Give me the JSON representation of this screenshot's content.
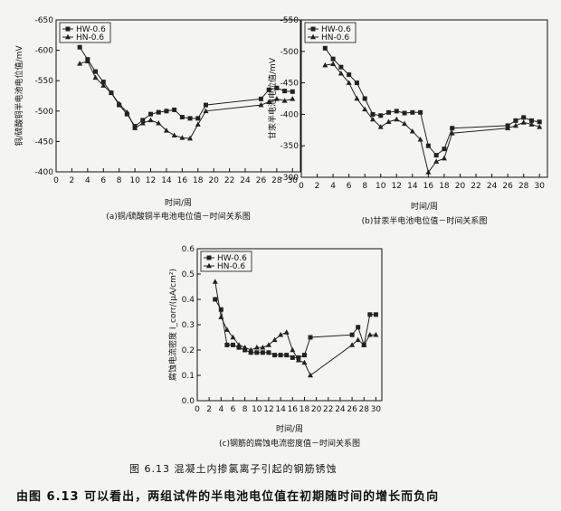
{
  "chart_data": [
    {
      "type": "line",
      "title": "(a)铜/硫酸铜半电池电位值－时间关系图",
      "xlabel": "时间/周",
      "ylabel": "铜/硫酸铜半电池电位值/mV",
      "xlim": [
        0,
        31
      ],
      "ylim": [
        -400,
        -650
      ],
      "xticks": [
        0,
        2,
        4,
        6,
        8,
        10,
        12,
        14,
        16,
        18,
        20,
        22,
        24,
        26,
        28,
        30
      ],
      "yticks": [
        -650,
        -600,
        -550,
        -500,
        -450,
        -400
      ],
      "legend_position": "top-left",
      "series": [
        {
          "name": "HW-0.6",
          "marker": "square",
          "x": [
            3,
            4,
            5,
            6,
            7,
            8,
            9,
            10,
            11,
            12,
            13,
            14,
            15,
            16,
            17,
            18,
            19,
            26,
            27,
            28,
            29,
            30
          ],
          "y": [
            -605,
            -585,
            -565,
            -548,
            -530,
            -510,
            -495,
            -475,
            -485,
            -495,
            -498,
            -500,
            -502,
            -490,
            -488,
            -488,
            -510,
            -520,
            -535,
            -538,
            -533,
            -532
          ]
        },
        {
          "name": "HN-0.6",
          "marker": "triangle",
          "x": [
            3,
            4,
            5,
            6,
            7,
            8,
            9,
            10,
            11,
            12,
            13,
            14,
            15,
            16,
            17,
            18,
            19,
            26,
            27,
            28,
            29,
            30
          ],
          "y": [
            -578,
            -582,
            -555,
            -542,
            -530,
            -512,
            -498,
            -472,
            -480,
            -485,
            -480,
            -468,
            -460,
            -456,
            -455,
            -478,
            -500,
            -510,
            -515,
            -520,
            -517,
            -520
          ]
        }
      ]
    },
    {
      "type": "line",
      "title": "(b)甘汞半电池电位值－时间关系图",
      "xlabel": "时间/周",
      "ylabel": "甘汞半电池电位值/mV",
      "xlim": [
        0,
        31
      ],
      "ylim": [
        -300,
        -550
      ],
      "xticks": [
        0,
        2,
        4,
        6,
        8,
        10,
        12,
        14,
        16,
        18,
        20,
        22,
        24,
        26,
        28,
        30
      ],
      "yticks": [
        -550,
        -500,
        -450,
        -400,
        -350,
        -300
      ],
      "legend_position": "top-left",
      "series": [
        {
          "name": "HW-0.6",
          "marker": "square",
          "x": [
            3,
            4,
            5,
            6,
            7,
            8,
            9,
            10,
            11,
            12,
            13,
            14,
            15,
            16,
            17,
            18,
            19,
            26,
            27,
            28,
            29,
            30
          ],
          "y": [
            -505,
            -488,
            -475,
            -463,
            -450,
            -425,
            -400,
            -398,
            -403,
            -405,
            -402,
            -403,
            -403,
            -350,
            -335,
            -345,
            -378,
            -382,
            -390,
            -395,
            -390,
            -388
          ]
        },
        {
          "name": "HN-0.6",
          "marker": "triangle",
          "x": [
            3,
            4,
            5,
            6,
            7,
            8,
            9,
            10,
            11,
            12,
            13,
            14,
            15,
            16,
            17,
            18,
            19,
            26,
            27,
            28,
            29,
            30
          ],
          "y": [
            -478,
            -480,
            -465,
            -450,
            -425,
            -408,
            -392,
            -380,
            -388,
            -392,
            -385,
            -373,
            -360,
            -308,
            -325,
            -330,
            -370,
            -378,
            -382,
            -387,
            -384,
            -380
          ]
        }
      ]
    },
    {
      "type": "line",
      "title": "(c)钢筋的腐蚀电流密度值－时间关系图",
      "xlabel": "时间/周",
      "ylabel": "腐蚀电流密度 I_corr/(μA/cm²)",
      "xlim": [
        0,
        31
      ],
      "ylim": [
        0,
        0.6
      ],
      "xticks": [
        0,
        2,
        4,
        6,
        8,
        10,
        12,
        14,
        16,
        18,
        20,
        22,
        24,
        26,
        28,
        30
      ],
      "yticks": [
        0.0,
        0.1,
        0.2,
        0.3,
        0.4,
        0.5,
        0.6
      ],
      "legend_position": "top-left",
      "series": [
        {
          "name": "HW-0.6",
          "marker": "square",
          "x": [
            3,
            4,
            5,
            6,
            7,
            8,
            9,
            10,
            11,
            12,
            13,
            14,
            15,
            16,
            17,
            18,
            19,
            26,
            27,
            28,
            29,
            30
          ],
          "y": [
            0.4,
            0.36,
            0.22,
            0.22,
            0.21,
            0.2,
            0.19,
            0.19,
            0.19,
            0.19,
            0.18,
            0.18,
            0.18,
            0.17,
            0.17,
            0.18,
            0.25,
            0.26,
            0.29,
            0.22,
            0.34,
            0.34
          ]
        },
        {
          "name": "HN-0.6",
          "marker": "triangle",
          "x": [
            3,
            4,
            5,
            6,
            7,
            8,
            9,
            10,
            11,
            12,
            13,
            14,
            15,
            16,
            17,
            18,
            19,
            26,
            27,
            28,
            29,
            30
          ],
          "y": [
            0.47,
            0.33,
            0.28,
            0.25,
            0.22,
            0.21,
            0.2,
            0.21,
            0.21,
            0.22,
            0.24,
            0.26,
            0.27,
            0.2,
            0.16,
            0.15,
            0.1,
            0.22,
            0.24,
            0.22,
            0.26,
            0.26
          ]
        }
      ]
    }
  ],
  "figure_caption": "图 6.13    混凝土内掺氯离子引起的钢筋锈蚀",
  "body_text": "由图 6.13 可以看出，两组试件的半电池电位值在初期随时间的增长而负向",
  "colors": {
    "line": "#222222",
    "axis": "#111111",
    "background": "#f4f4f2"
  }
}
